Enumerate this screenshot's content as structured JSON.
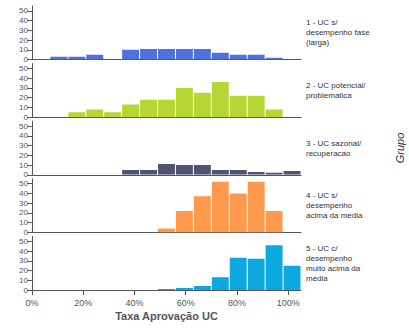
{
  "chart_data": [
    {
      "type": "histogram",
      "title": "1 - UC s/\ndesempenho fase\n(larga)",
      "bins": [
        7,
        14,
        21,
        28,
        35,
        42,
        49,
        56,
        63,
        70,
        77,
        84,
        91,
        98
      ],
      "values": [
        3,
        3,
        5,
        0,
        10,
        11,
        11,
        11,
        11,
        7,
        5,
        5,
        2
      ],
      "xlim": [
        0,
        105
      ],
      "ylim": [
        0,
        55
      ],
      "yticks": [
        0,
        10,
        20,
        30,
        40,
        50
      ],
      "grid": false,
      "tick_labels": "y"
    },
    {
      "type": "histogram",
      "title": "2 - UC potencial/\nproblematica",
      "bins": [
        14,
        21,
        28,
        35,
        42,
        49,
        56,
        63,
        70,
        77,
        84,
        91,
        98
      ],
      "values": [
        5,
        8,
        5,
        13,
        18,
        18,
        30,
        25,
        36,
        22,
        22,
        8
      ],
      "xlim": [
        0,
        105
      ],
      "ylim": [
        0,
        55
      ],
      "yticks": [
        0,
        10,
        20,
        30,
        40,
        50
      ],
      "grid": false,
      "tick_labels": "y"
    },
    {
      "type": "histogram",
      "title": "3 - UC sazonal/\nrecuperacao",
      "ylabel": "Grupo",
      "bins": [
        35,
        42,
        49,
        56,
        63,
        70,
        77,
        84,
        91,
        98,
        105
      ],
      "values": [
        5,
        5,
        11,
        10,
        10,
        5,
        5,
        3,
        2,
        4
      ],
      "xlim": [
        0,
        105
      ],
      "ylim": [
        0,
        55
      ],
      "yticks": [
        0,
        10,
        20,
        30,
        40,
        50
      ],
      "grid": false,
      "tick_labels": "y"
    },
    {
      "type": "histogram",
      "title": "4 - UC s/\ndesempenho\nacima da media",
      "bins": [
        49,
        56,
        63,
        70,
        77,
        84,
        91,
        98
      ],
      "values": [
        4,
        22,
        37,
        52,
        40,
        52,
        22
      ],
      "xlim": [
        0,
        105
      ],
      "ylim": [
        0,
        55
      ],
      "yticks": [
        0,
        10,
        20,
        30,
        40,
        50
      ],
      "grid": false,
      "tick_labels": "y"
    },
    {
      "type": "histogram",
      "title": "5 - UC c/\ndesempenho\nmuito acima da\nmédia",
      "xlabel": "Taxa Aprovação UC",
      "bins": [
        49,
        56,
        63,
        70,
        77,
        84,
        91,
        98,
        105
      ],
      "values": [
        1,
        2,
        4,
        13,
        33,
        32,
        46,
        25
      ],
      "xlim": [
        0,
        105
      ],
      "ylim": [
        0,
        55
      ],
      "yticks": [
        0,
        10,
        20,
        30,
        40,
        50
      ],
      "xticks": [
        {
          "value": 0,
          "label": "0%"
        },
        {
          "value": 20,
          "label": "20%"
        },
        {
          "value": 40,
          "label": "40%"
        },
        {
          "value": 60,
          "label": "60%"
        },
        {
          "value": 80,
          "label": "80%"
        },
        {
          "value": 100,
          "label": "100%"
        }
      ],
      "grid": false
    }
  ]
}
